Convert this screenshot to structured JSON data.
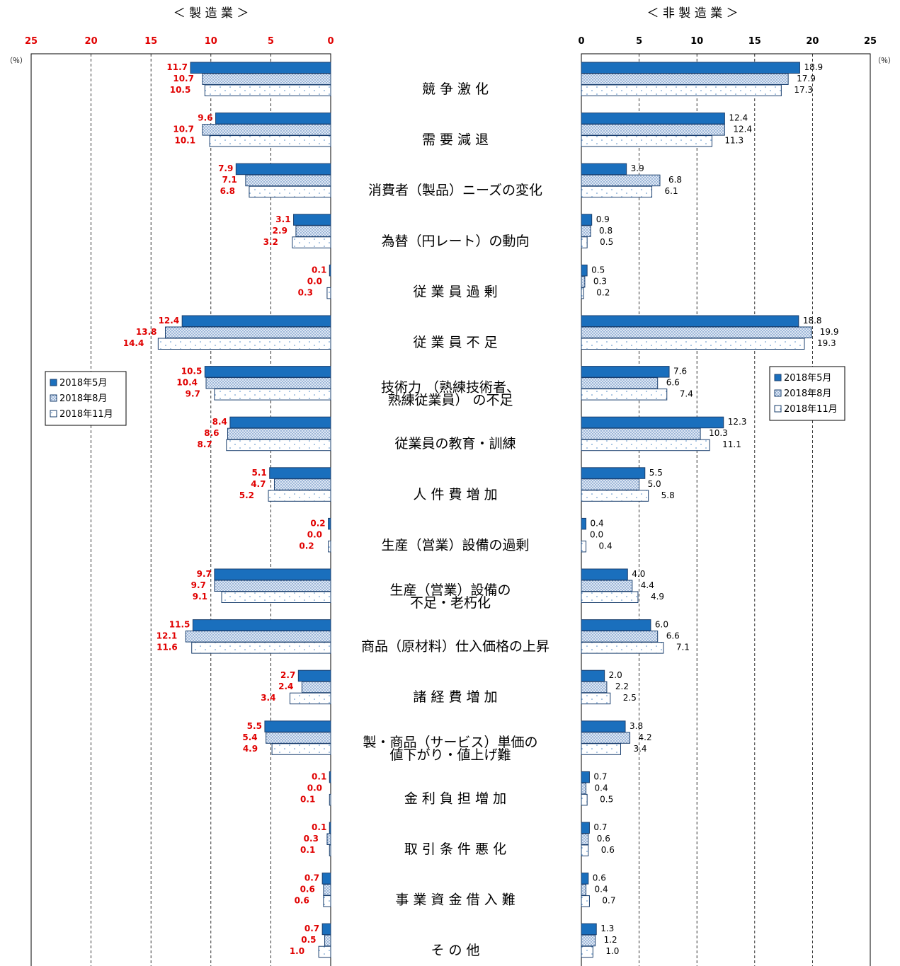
{
  "chart_data": {
    "type": "bar",
    "orientation": "horizontal",
    "left_panel": {
      "title": "＜ 製 造 業 ＞",
      "xlim": [
        0,
        25
      ],
      "direction": "reversed",
      "ticks": [
        "25",
        "20",
        "15",
        "10",
        "5",
        "0"
      ],
      "unit": "（％）"
    },
    "right_panel": {
      "title": "＜ 非 製 造 業 ＞",
      "xlim": [
        0,
        25
      ],
      "ticks": [
        "0",
        "5",
        "10",
        "15",
        "20",
        "25"
      ],
      "unit": "（％）"
    },
    "categories": [
      [
        "競 争 激 化"
      ],
      [
        "需 要 減 退"
      ],
      [
        "消費者（製品）ニーズの変化"
      ],
      [
        "為替（円レート）の動向"
      ],
      [
        "従 業 員 過 剰"
      ],
      [
        "従 業 員 不 足"
      ],
      [
        "技術力 （熟練技術者、",
        "熟練従業員） の不足"
      ],
      [
        "従業員の教育・訓練"
      ],
      [
        "人 件 費 増 加"
      ],
      [
        "生産（営業）設備の過剰"
      ],
      [
        "生産（営業）設備の",
        "不足・老朽化"
      ],
      [
        "商品（原材料）仕入価格の上昇"
      ],
      [
        "諸 経 費 増 加"
      ],
      [
        "製・商品（サービス）単価の",
        "値下がり・値上げ難"
      ],
      [
        "金 利 負 担 増 加"
      ],
      [
        "取 引 条 件 悪 化"
      ],
      [
        "事 業 資 金 借 入 難"
      ],
      [
        "そ の 他"
      ]
    ],
    "series_names": [
      "2018年5月",
      "2018年8月",
      "2018年11月"
    ],
    "manufacturing": [
      [
        "11.7",
        "10.7",
        "10.5"
      ],
      [
        "9.6",
        "10.7",
        "10.1"
      ],
      [
        "7.9",
        "7.1",
        "6.8"
      ],
      [
        "3.1",
        "2.9",
        "3.2"
      ],
      [
        "0.1",
        "0.0",
        "0.3"
      ],
      [
        "12.4",
        "13.8",
        "14.4"
      ],
      [
        "10.5",
        "10.4",
        "9.7"
      ],
      [
        "8.4",
        "8.6",
        "8.7"
      ],
      [
        "5.1",
        "4.7",
        "5.2"
      ],
      [
        "0.2",
        "0.0",
        "0.2"
      ],
      [
        "9.7",
        "9.7",
        "9.1"
      ],
      [
        "11.5",
        "12.1",
        "11.6"
      ],
      [
        "2.7",
        "2.4",
        "3.4"
      ],
      [
        "5.5",
        "5.4",
        "4.9"
      ],
      [
        "0.1",
        "0.0",
        "0.1"
      ],
      [
        "0.1",
        "0.3",
        "0.1"
      ],
      [
        "0.7",
        "0.6",
        "0.6"
      ],
      [
        "0.7",
        "0.5",
        "1.0"
      ]
    ],
    "non_manufacturing": [
      [
        "18.9",
        "17.9",
        "17.3"
      ],
      [
        "12.4",
        "12.4",
        "11.3"
      ],
      [
        "3.9",
        "6.8",
        "6.1"
      ],
      [
        "0.9",
        "0.8",
        "0.5"
      ],
      [
        "0.5",
        "0.3",
        "0.2"
      ],
      [
        "18.8",
        "19.9",
        "19.3"
      ],
      [
        "7.6",
        "6.6",
        "7.4"
      ],
      [
        "12.3",
        "10.3",
        "11.1"
      ],
      [
        "5.5",
        "5.0",
        "5.8"
      ],
      [
        "0.4",
        "0.0",
        "0.4"
      ],
      [
        "4.0",
        "4.4",
        "4.9"
      ],
      [
        "6.0",
        "6.6",
        "7.1"
      ],
      [
        "2.0",
        "2.2",
        "2.5"
      ],
      [
        "3.8",
        "4.2",
        "3.4"
      ],
      [
        "0.7",
        "0.4",
        "0.5"
      ],
      [
        "0.7",
        "0.6",
        "0.6"
      ],
      [
        "0.6",
        "0.4",
        "0.7"
      ],
      [
        "1.3",
        "1.2",
        "1.0"
      ]
    ],
    "colors": {
      "series1_fill": "#1a6fbd",
      "series2_fill": "#dfe8f4",
      "series2_dot": "#3d6fb0",
      "series3_fill": "#ffffff",
      "series3_dot": "#4a86c5",
      "bar_stroke": "#1a3f6e",
      "left_labels": "#e00000",
      "right_labels": "#000000"
    },
    "grid": "dashed-vertical",
    "legend": [
      "left-middle",
      "right-middle"
    ]
  }
}
